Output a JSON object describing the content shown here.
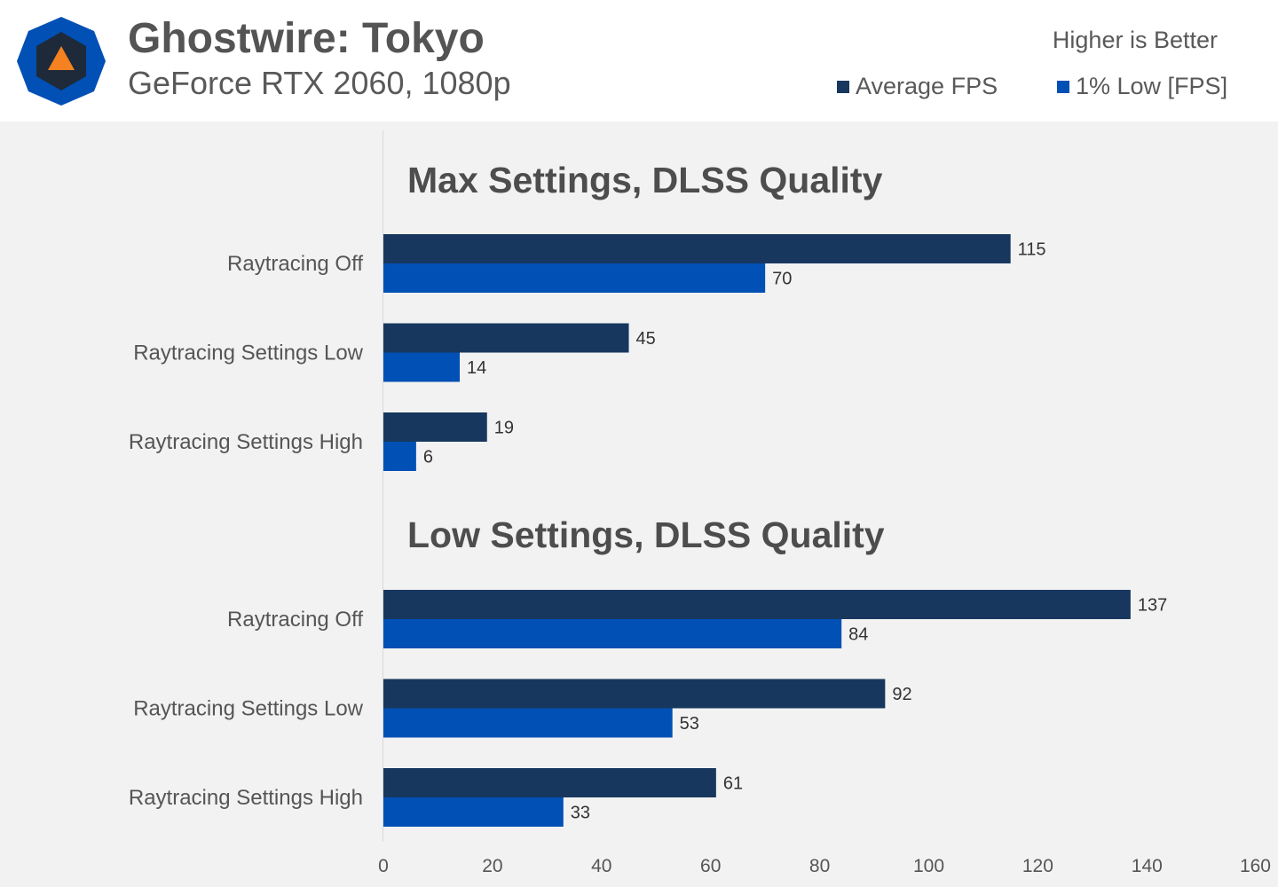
{
  "header": {
    "title": "Ghostwire: Tokyo",
    "subtitle": "GeForce RTX 2060, 1080p",
    "note": "Higher is Better",
    "logo_icon": "techspot-logo-icon"
  },
  "legend": [
    {
      "label": "Average FPS",
      "color": "#17375e"
    },
    {
      "label": "1% Low [FPS]",
      "color": "#0050b5"
    }
  ],
  "chart_data": {
    "type": "bar",
    "orientation": "horizontal",
    "title": "Ghostwire: Tokyo",
    "subtitle": "GeForce RTX 2060, 1080p",
    "xlim": [
      0,
      160
    ],
    "xticks": [
      0,
      20,
      40,
      60,
      80,
      100,
      120,
      140,
      160
    ],
    "grid": false,
    "legend_position": "top-right",
    "groups": [
      {
        "title": "Max Settings, DLSS Quality",
        "categories": [
          "Raytracing Off",
          "Raytracing Settings Low",
          "Raytracing Settings High"
        ],
        "series": [
          {
            "name": "Average FPS",
            "values": [
              115,
              45,
              19
            ]
          },
          {
            "name": "1% Low [FPS]",
            "values": [
              70,
              14,
              6
            ]
          }
        ]
      },
      {
        "title": "Low Settings, DLSS Quality",
        "categories": [
          "Raytracing Off",
          "Raytracing Settings Low",
          "Raytracing Settings High"
        ],
        "series": [
          {
            "name": "Average FPS",
            "values": [
              137,
              92,
              61
            ]
          },
          {
            "name": "1% Low [FPS]",
            "values": [
              84,
              53,
              33
            ]
          }
        ]
      }
    ]
  }
}
